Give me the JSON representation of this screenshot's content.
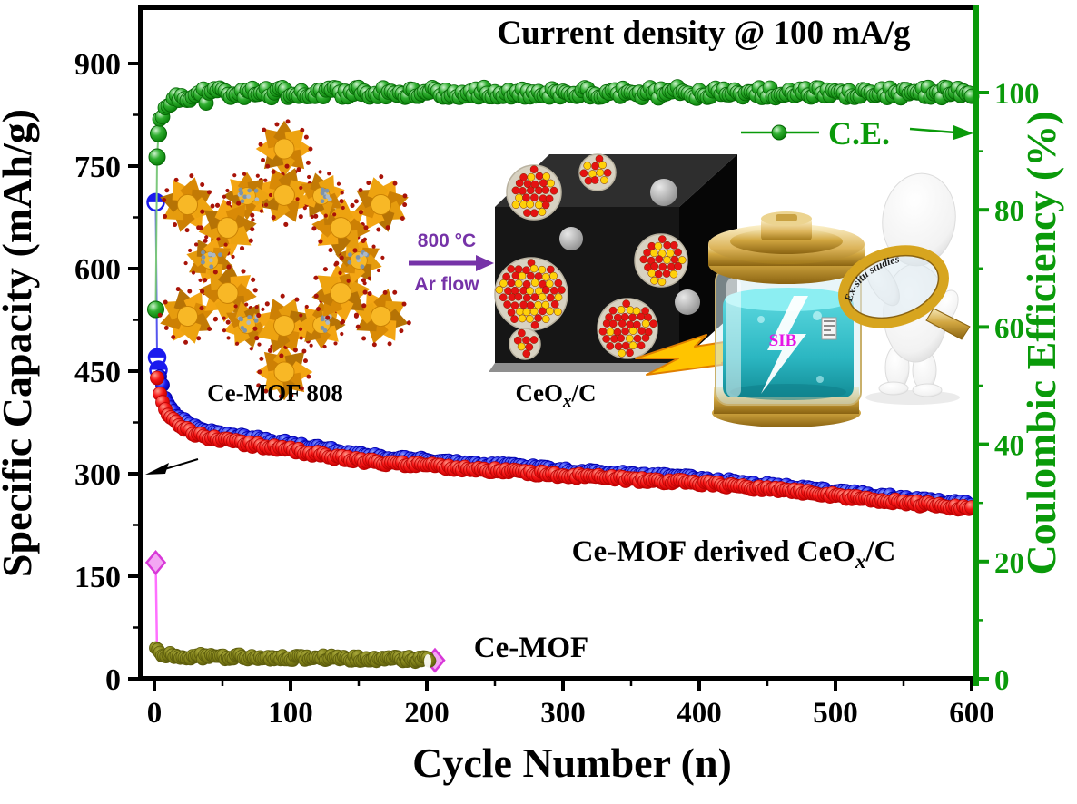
{
  "title": "Current density @ 100 mA/g",
  "legend": {
    "label": "C.E."
  },
  "axes": {
    "x": {
      "label": "Cycle Number (n)",
      "range": [
        0,
        600
      ],
      "ticks": [
        0,
        100,
        200,
        300,
        400,
        500,
        600
      ],
      "minor_step": 50
    },
    "y_left": {
      "label": "Specific Capacity (mAh/g)",
      "range": [
        0,
        900
      ],
      "ticks": [
        0,
        150,
        300,
        450,
        600,
        750,
        900
      ],
      "minor_step": 75
    },
    "y_right": {
      "label": "Coulombic Efficiency (%)",
      "range": [
        0,
        100
      ],
      "ticks": [
        0,
        20,
        40,
        60,
        80,
        100
      ],
      "minor_step": 10
    }
  },
  "labels": {
    "mof_label": "Ce-MOF 808",
    "cube_label": {
      "pre": "CeO",
      "sub": "x",
      "post": "/C"
    },
    "series_ceox_label": {
      "pre": "Ce-MOF derived CeO",
      "sub": "x",
      "post": "/C"
    },
    "series_cemof_label": "Ce-MOF",
    "arrow_top": "800 °C",
    "arrow_bottom": "Ar flow",
    "battery_label": "SIB",
    "magnifier_label": "Ex-situ studies"
  },
  "colors": {
    "green": "#0a9a0a",
    "green_dark": "#056505",
    "green_line": "#7cc87c",
    "red": "#f51212",
    "red_dark": "#b80404",
    "blue": "#1a1aee",
    "blue_dark": "#0000a8",
    "blue_line": "#5555ee",
    "olive": "#7e7e17",
    "olive_dark": "#5c5c0d",
    "magenta": "#f3a6f3",
    "magenta_dark": "#d838d8",
    "magenta_line": "#ff70ff",
    "purple": "#7633a8",
    "sib": "#e616e6",
    "black": "#000000"
  },
  "chart_data": {
    "type": "scatter",
    "title": "Current density @ 100 mA/g",
    "xlabel": "Cycle Number (n)",
    "ylabel_left": "Specific Capacity (mAh/g)",
    "ylabel_right": "Coulombic Efficiency (%)",
    "xlim": [
      0,
      600
    ],
    "ylim_left": [
      0,
      900
    ],
    "ylim_right": [
      0,
      100
    ],
    "series": [
      {
        "name": "Ce-MOF derived CeOx/C charge capacity",
        "axis": "left",
        "color_key": "blue",
        "marker": "circle-half-top",
        "anchors": [
          [
            1,
            697
          ],
          [
            2,
            470
          ],
          [
            3,
            452
          ],
          [
            4,
            441
          ],
          [
            5,
            431
          ],
          [
            7,
            414
          ],
          [
            10,
            398
          ],
          [
            15,
            384
          ],
          [
            20,
            376
          ],
          [
            30,
            365
          ],
          [
            40,
            359
          ],
          [
            50,
            355
          ],
          [
            60,
            352
          ],
          [
            75,
            348
          ],
          [
            100,
            341
          ],
          [
            125,
            333
          ],
          [
            150,
            325
          ],
          [
            175,
            320
          ],
          [
            200,
            317
          ],
          [
            225,
            313
          ],
          [
            250,
            310
          ],
          [
            275,
            306
          ],
          [
            300,
            302
          ],
          [
            325,
            299
          ],
          [
            350,
            296
          ],
          [
            375,
            293
          ],
          [
            400,
            290
          ],
          [
            425,
            285
          ],
          [
            450,
            280
          ],
          [
            475,
            276
          ],
          [
            500,
            271
          ],
          [
            525,
            266
          ],
          [
            550,
            261
          ],
          [
            575,
            256
          ],
          [
            600,
            252
          ]
        ]
      },
      {
        "name": "Ce-MOF derived CeOx/C discharge capacity",
        "axis": "left",
        "color_key": "red",
        "marker": "circle",
        "anchors": [
          [
            2,
            437
          ],
          [
            3,
            427
          ],
          [
            4,
            419
          ],
          [
            5,
            412
          ],
          [
            7,
            399
          ],
          [
            10,
            387
          ],
          [
            15,
            376
          ],
          [
            20,
            369
          ],
          [
            30,
            359
          ],
          [
            40,
            353
          ],
          [
            50,
            349
          ],
          [
            60,
            346
          ],
          [
            75,
            342
          ],
          [
            100,
            335
          ],
          [
            125,
            327
          ],
          [
            150,
            319
          ],
          [
            175,
            315
          ],
          [
            200,
            312
          ],
          [
            225,
            308
          ],
          [
            250,
            305
          ],
          [
            275,
            301
          ],
          [
            300,
            298
          ],
          [
            325,
            295
          ],
          [
            350,
            292
          ],
          [
            375,
            289
          ],
          [
            400,
            286
          ],
          [
            425,
            282
          ],
          [
            450,
            277
          ],
          [
            475,
            273
          ],
          [
            500,
            268
          ],
          [
            525,
            263
          ],
          [
            550,
            258
          ],
          [
            575,
            253
          ],
          [
            600,
            249
          ]
        ]
      },
      {
        "name": "Coulombic efficiency (C.E.)",
        "axis": "right",
        "color_key": "green",
        "marker": "sphere",
        "anchors": [
          [
            1,
            63
          ],
          [
            2,
            89
          ],
          [
            3,
            93
          ],
          [
            4,
            95
          ],
          [
            5,
            96
          ],
          [
            7,
            97.4
          ],
          [
            10,
            98.3
          ],
          [
            15,
            98.9
          ],
          [
            20,
            99.3
          ],
          [
            30,
            99.7
          ],
          [
            50,
            99.9
          ],
          [
            100,
            100
          ],
          [
            200,
            100
          ],
          [
            300,
            100
          ],
          [
            400,
            99.9
          ],
          [
            500,
            100
          ],
          [
            600,
            100
          ]
        ]
      },
      {
        "name": "Ce-MOF discharge capacity",
        "axis": "left",
        "color_key": "olive",
        "marker": "circle",
        "anchors": [
          [
            1,
            44
          ],
          [
            2,
            40
          ],
          [
            3,
            38
          ],
          [
            5,
            36
          ],
          [
            10,
            34
          ],
          [
            25,
            33
          ],
          [
            50,
            32
          ],
          [
            100,
            31
          ],
          [
            150,
            30
          ],
          [
            203,
            28
          ]
        ]
      },
      {
        "name": "Ce-MOF charge (first cycle diamond)",
        "axis": "left",
        "color_key": "magenta",
        "marker": "diamond",
        "anchors": [
          [
            1,
            170
          ],
          [
            2,
            36
          ],
          [
            50,
            31
          ],
          [
            100,
            30
          ],
          [
            150,
            29
          ],
          [
            206,
            27
          ]
        ]
      }
    ]
  }
}
